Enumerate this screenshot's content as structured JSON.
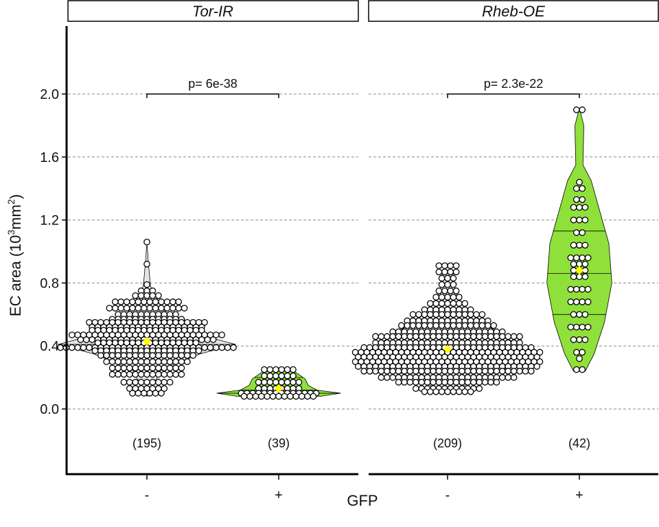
{
  "chart_data": {
    "type": "violin",
    "y_axis": {
      "title": "EC area (10",
      "title_sup": "3",
      "title_unit": "mm",
      "title_unit_sup": "2",
      "title_close": ")",
      "ylim": [
        -0.45,
        2.45
      ],
      "ticks": [
        0.0,
        0.4,
        0.8,
        1.2,
        1.6,
        2.0
      ],
      "tick_labels": [
        "0.0",
        "0.4",
        "0.8",
        "1.2",
        "1.6",
        "2.0"
      ],
      "grid": "dashed horizontal at major ticks"
    },
    "x_axis": {
      "title": "GFP",
      "categories": [
        "-",
        "+"
      ]
    },
    "colors": {
      "gfp_minus": "#e5e5e5",
      "gfp_plus": "#8fe03a",
      "mean_marker": "#ffff00"
    },
    "panels": [
      {
        "label": "Tor-IR",
        "p_value": "p= 6e-38",
        "groups": [
          {
            "gfp": "-",
            "n_label": "(195)",
            "mean": 0.43,
            "quartiles": [
              0.3,
              0.41,
              0.52
            ],
            "rows": [
              {
                "y": 1.06,
                "n": 1
              },
              {
                "y": 0.92,
                "n": 1
              },
              {
                "y": 0.79,
                "n": 1
              },
              {
                "y": 0.75,
                "n": 3
              },
              {
                "y": 0.72,
                "n": 5
              },
              {
                "y": 0.68,
                "n": 12
              },
              {
                "y": 0.64,
                "n": 14
              },
              {
                "y": 0.6,
                "n": 11
              },
              {
                "y": 0.57,
                "n": 13
              },
              {
                "y": 0.55,
                "n": 21
              },
              {
                "y": 0.52,
                "n": 20
              },
              {
                "y": 0.5,
                "n": 20
              },
              {
                "y": 0.47,
                "n": 27
              },
              {
                "y": 0.44,
                "n": 24
              },
              {
                "y": 0.42,
                "n": 18
              },
              {
                "y": 0.39,
                "n": 31
              },
              {
                "y": 0.37,
                "n": 19
              },
              {
                "y": 0.34,
                "n": 17
              },
              {
                "y": 0.3,
                "n": 15
              },
              {
                "y": 0.26,
                "n": 13
              },
              {
                "y": 0.22,
                "n": 13
              },
              {
                "y": 0.17,
                "n": 9
              },
              {
                "y": 0.13,
                "n": 7
              },
              {
                "y": 0.1,
                "n": 6
              }
            ],
            "violin_halfwidth": [
              {
                "y": 0.08,
                "w": 0.0
              },
              {
                "y": 0.15,
                "w": 0.02
              },
              {
                "y": 0.25,
                "w": 0.05
              },
              {
                "y": 0.35,
                "w": 0.18
              },
              {
                "y": 0.41,
                "w": 0.3
              },
              {
                "y": 0.47,
                "w": 0.18
              },
              {
                "y": 0.57,
                "w": 0.08
              },
              {
                "y": 0.68,
                "w": 0.04
              },
              {
                "y": 0.78,
                "w": 0.012
              },
              {
                "y": 0.95,
                "w": 0.004
              },
              {
                "y": 1.07,
                "w": 0.0
              }
            ]
          },
          {
            "gfp": "+",
            "n_label": "(39)",
            "mean": 0.13,
            "quartiles": [
              0.1,
              0.12,
              0.2
            ],
            "rows": [
              {
                "y": 0.25,
                "n": 6
              },
              {
                "y": 0.21,
                "n": 6
              },
              {
                "y": 0.17,
                "n": 8
              },
              {
                "y": 0.13,
                "n": 8
              },
              {
                "y": 0.1,
                "n": 14
              },
              {
                "y": 0.08,
                "n": 13
              }
            ],
            "violin_halfwidth": [
              {
                "y": 0.07,
                "w": 0.0
              },
              {
                "y": 0.08,
                "w": 0.14
              },
              {
                "y": 0.1,
                "w": 0.21
              },
              {
                "y": 0.12,
                "w": 0.13
              },
              {
                "y": 0.15,
                "w": 0.1
              },
              {
                "y": 0.19,
                "w": 0.09
              },
              {
                "y": 0.23,
                "w": 0.06
              },
              {
                "y": 0.26,
                "w": 0.0
              }
            ]
          }
        ]
      },
      {
        "label": "Rheb-OE",
        "p_value": "p= 2.3e-22",
        "groups": [
          {
            "gfp": "-",
            "n_label": "(209)",
            "mean": 0.38,
            "quartiles": [
              0.28,
              0.35,
              0.45
            ],
            "rows": [
              {
                "y": 0.91,
                "n": 4
              },
              {
                "y": 0.87,
                "n": 4
              },
              {
                "y": 0.83,
                "n": 3
              },
              {
                "y": 0.79,
                "n": 3
              },
              {
                "y": 0.75,
                "n": 4
              },
              {
                "y": 0.71,
                "n": 5
              },
              {
                "y": 0.67,
                "n": 7
              },
              {
                "y": 0.63,
                "n": 9
              },
              {
                "y": 0.6,
                "n": 13
              },
              {
                "y": 0.56,
                "n": 15
              },
              {
                "y": 0.53,
                "n": 17
              },
              {
                "y": 0.49,
                "n": 20
              },
              {
                "y": 0.46,
                "n": 26
              },
              {
                "y": 0.42,
                "n": 26
              },
              {
                "y": 0.39,
                "n": 30
              },
              {
                "y": 0.36,
                "n": 33
              },
              {
                "y": 0.33,
                "n": 32
              },
              {
                "y": 0.3,
                "n": 33
              },
              {
                "y": 0.27,
                "n": 32
              },
              {
                "y": 0.24,
                "n": 30
              },
              {
                "y": 0.2,
                "n": 24
              },
              {
                "y": 0.17,
                "n": 18
              },
              {
                "y": 0.13,
                "n": 12
              },
              {
                "y": 0.11,
                "n": 9
              }
            ],
            "violin_halfwidth": [
              {
                "y": 0.1,
                "w": 0.0
              },
              {
                "y": 0.16,
                "w": 0.07
              },
              {
                "y": 0.23,
                "w": 0.16
              },
              {
                "y": 0.3,
                "w": 0.26
              },
              {
                "y": 0.36,
                "w": 0.28
              },
              {
                "y": 0.45,
                "w": 0.2
              },
              {
                "y": 0.55,
                "w": 0.12
              },
              {
                "y": 0.66,
                "w": 0.05
              },
              {
                "y": 0.75,
                "w": 0.025
              },
              {
                "y": 0.85,
                "w": 0.02
              },
              {
                "y": 0.92,
                "w": 0.0
              }
            ]
          },
          {
            "gfp": "+",
            "n_label": "(42)",
            "mean": 0.88,
            "quartiles": [
              0.6,
              0.86,
              1.13
            ],
            "rows": [
              {
                "y": 1.9,
                "n": 2
              },
              {
                "y": 1.44,
                "n": 1
              },
              {
                "y": 1.4,
                "n": 2
              },
              {
                "y": 1.33,
                "n": 2
              },
              {
                "y": 1.28,
                "n": 3
              },
              {
                "y": 1.2,
                "n": 3
              },
              {
                "y": 1.12,
                "n": 2
              },
              {
                "y": 1.04,
                "n": 3
              },
              {
                "y": 0.96,
                "n": 4
              },
              {
                "y": 0.92,
                "n": 3
              },
              {
                "y": 0.88,
                "n": 3
              },
              {
                "y": 0.84,
                "n": 3
              },
              {
                "y": 0.76,
                "n": 4
              },
              {
                "y": 0.68,
                "n": 4
              },
              {
                "y": 0.6,
                "n": 3
              },
              {
                "y": 0.52,
                "n": 4
              },
              {
                "y": 0.44,
                "n": 3
              },
              {
                "y": 0.36,
                "n": 2
              },
              {
                "y": 0.32,
                "n": 1
              },
              {
                "y": 0.25,
                "n": 2
              }
            ],
            "violin_halfwidth": [
              {
                "y": 0.24,
                "w": 0.02
              },
              {
                "y": 0.35,
                "w": 0.05
              },
              {
                "y": 0.55,
                "w": 0.085
              },
              {
                "y": 0.8,
                "w": 0.11
              },
              {
                "y": 1.05,
                "w": 0.1
              },
              {
                "y": 1.25,
                "w": 0.07
              },
              {
                "y": 1.45,
                "w": 0.04
              },
              {
                "y": 1.55,
                "w": 0.012
              },
              {
                "y": 1.8,
                "w": 0.015
              },
              {
                "y": 1.91,
                "w": 0.0
              }
            ]
          }
        ]
      }
    ]
  }
}
